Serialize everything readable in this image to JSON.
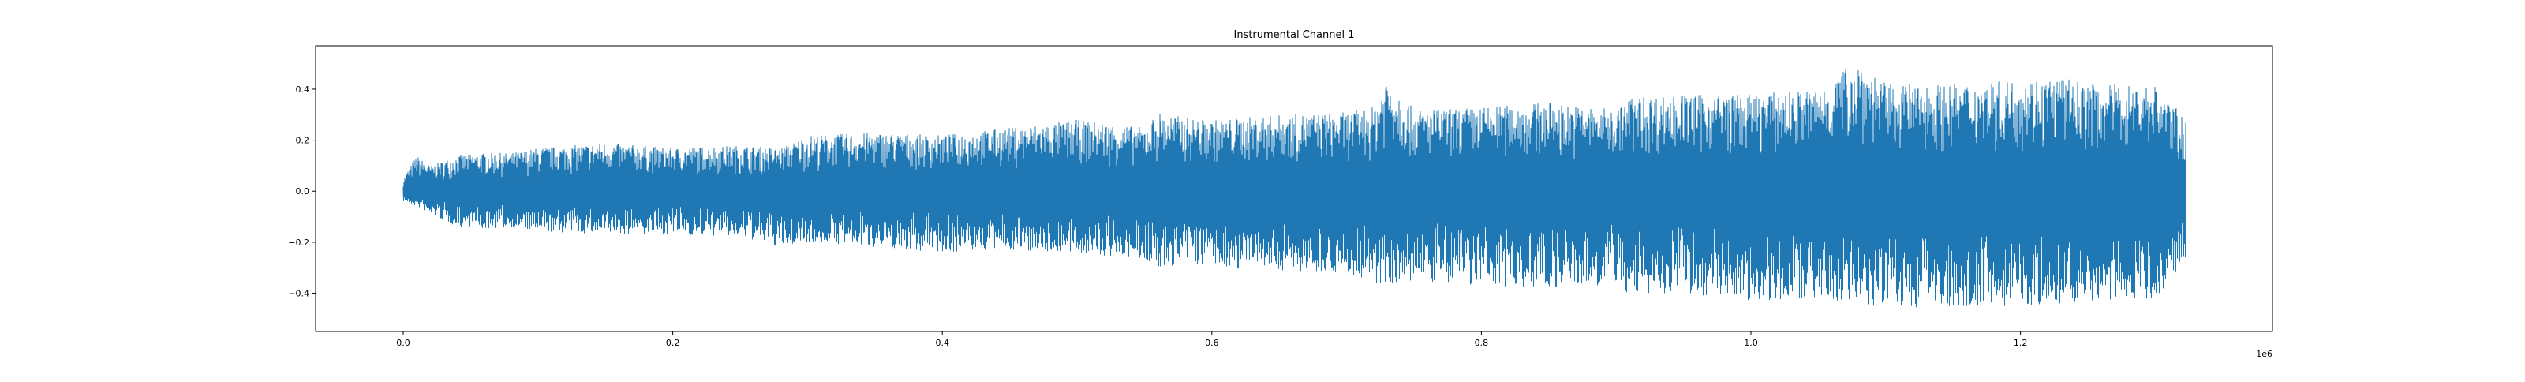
{
  "chart_data": {
    "type": "line",
    "title": "Instrumental Channel 1",
    "xlabel": "",
    "ylabel": "",
    "x_offset_text": "1e6",
    "xlim": [
      -65000,
      1387000
    ],
    "ylim": [
      -0.55,
      0.57
    ],
    "x_ticks": [
      0.0,
      0.2,
      0.4,
      0.6,
      0.8,
      1.0,
      1.2
    ],
    "x_tick_labels": [
      "0.0",
      "0.2",
      "0.4",
      "0.6",
      "0.8",
      "1.0",
      "1.2"
    ],
    "y_ticks": [
      -0.4,
      -0.2,
      0.0,
      0.2,
      0.4
    ],
    "y_tick_labels": [
      "−0.4",
      "−0.2",
      "0.0",
      "0.2",
      "0.4"
    ],
    "grid": false,
    "legend": "none",
    "series": [
      {
        "color": "#1f77b4",
        "sample_count": 1323000,
        "envelope": {
          "x": [
            0,
            10000,
            20000,
            40000,
            60000,
            80000,
            100000,
            150000,
            200000,
            250000,
            280000,
            300000,
            350000,
            400000,
            450000,
            500000,
            550000,
            560000,
            580000,
            600000,
            650000,
            700000,
            720000,
            730000,
            750000,
            800000,
            850000,
            900000,
            910000,
            950000,
            1000000,
            1050000,
            1080000,
            1100000,
            1150000,
            1200000,
            1230000,
            1250000,
            1300000,
            1323000
          ],
          "max": [
            0.05,
            0.14,
            0.1,
            0.14,
            0.15,
            0.15,
            0.17,
            0.19,
            0.17,
            0.18,
            0.17,
            0.22,
            0.23,
            0.22,
            0.25,
            0.28,
            0.25,
            0.31,
            0.29,
            0.28,
            0.3,
            0.31,
            0.33,
            0.46,
            0.32,
            0.33,
            0.35,
            0.32,
            0.37,
            0.38,
            0.38,
            0.4,
            0.52,
            0.42,
            0.42,
            0.44,
            0.45,
            0.42,
            0.42,
            0.28
          ],
          "min": [
            -0.04,
            -0.06,
            -0.09,
            -0.14,
            -0.15,
            -0.14,
            -0.16,
            -0.17,
            -0.17,
            -0.18,
            -0.22,
            -0.2,
            -0.22,
            -0.24,
            -0.23,
            -0.25,
            -0.27,
            -0.31,
            -0.28,
            -0.3,
            -0.31,
            -0.32,
            -0.38,
            -0.36,
            -0.36,
            -0.37,
            -0.38,
            -0.37,
            -0.41,
            -0.4,
            -0.43,
            -0.42,
            -0.45,
            -0.46,
            -0.45,
            -0.45,
            -0.45,
            -0.43,
            -0.42,
            -0.28
          ]
        }
      }
    ]
  }
}
